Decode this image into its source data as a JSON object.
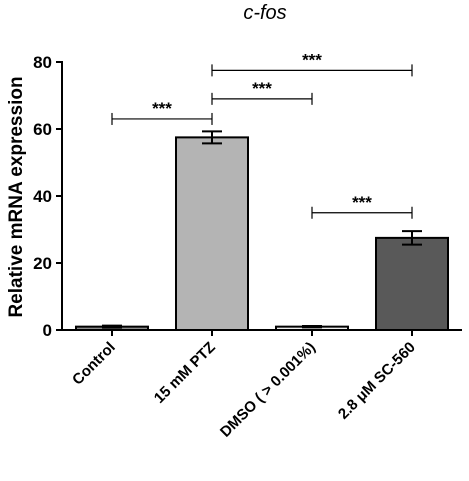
{
  "chart_data": {
    "type": "bar",
    "title": "c-fos",
    "ylabel": "Relative mRNA expression",
    "xlabel": "",
    "ylim": [
      0,
      80
    ],
    "yticks": [
      0,
      20,
      40,
      60,
      80
    ],
    "categories": [
      "Control",
      "15 mM PTZ",
      "DMSO ( > 0.001%)",
      "2.8 μM SC-560"
    ],
    "values": [
      1,
      57.5,
      1,
      27.5
    ],
    "errors": [
      0.3,
      1.8,
      0.2,
      2.0
    ],
    "bar_colors": [
      "#8a8a8a",
      "#b4b4b4",
      "#ececec",
      "#595959"
    ],
    "comparisons": [
      {
        "from": 0,
        "to": 1,
        "y": 63,
        "label": "***"
      },
      {
        "from": 1,
        "to": 2,
        "y": 69,
        "label": "***"
      },
      {
        "from": 1,
        "to": 3,
        "y": 77.5,
        "label": "***"
      },
      {
        "from": 2,
        "to": 3,
        "y": 35,
        "label": "***"
      }
    ],
    "grid": false,
    "legend": "none"
  }
}
